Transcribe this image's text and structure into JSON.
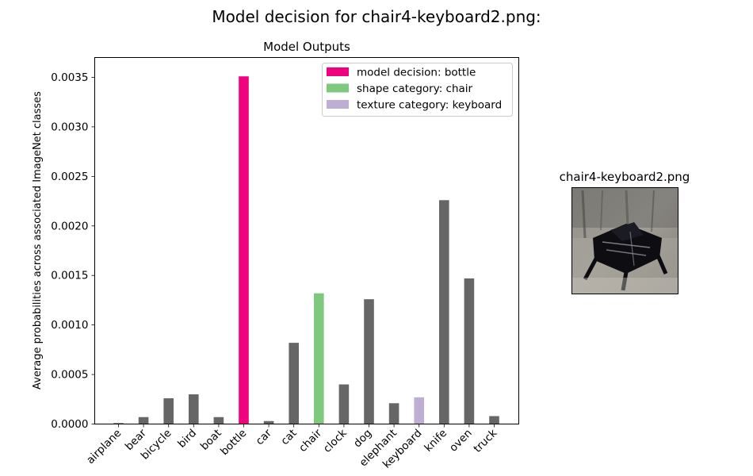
{
  "figure": {
    "title": "Model decision for chair4-keyboard2.png:"
  },
  "chart_data": {
    "type": "bar",
    "title": "Model Outputs",
    "xlabel": "",
    "ylabel": "Average probabilities across associated ImageNet classes",
    "categories": [
      "airplane",
      "bear",
      "bicycle",
      "bird",
      "boat",
      "bottle",
      "car",
      "cat",
      "chair",
      "clock",
      "dog",
      "elephant",
      "keyboard",
      "knife",
      "oven",
      "truck"
    ],
    "values": [
      1e-05,
      7e-05,
      0.00026,
      0.0003,
      7e-05,
      0.00351,
      3e-05,
      0.00082,
      0.00132,
      0.0004,
      0.00126,
      0.00021,
      0.00027,
      0.00226,
      0.00147,
      8e-05
    ],
    "ylim": [
      0,
      0.0037
    ],
    "yticks": [
      "0.0000",
      "0.0005",
      "0.0010",
      "0.0015",
      "0.0020",
      "0.0025",
      "0.0030",
      "0.0035"
    ],
    "grid": false,
    "legend_position": "top-right",
    "colors": {
      "default": "#666666",
      "decision": "#f0027f",
      "shape": "#7fc97f",
      "texture": "#beaed4"
    },
    "highlights": {
      "bottle": "decision",
      "chair": "shape",
      "keyboard": "texture"
    },
    "legend": [
      {
        "label": "model decision: bottle",
        "color_key": "decision"
      },
      {
        "label": "shape category: chair",
        "color_key": "shape"
      },
      {
        "label": "texture category: keyboard",
        "color_key": "texture"
      }
    ]
  },
  "image_panel": {
    "title": "chair4-keyboard2.png"
  }
}
